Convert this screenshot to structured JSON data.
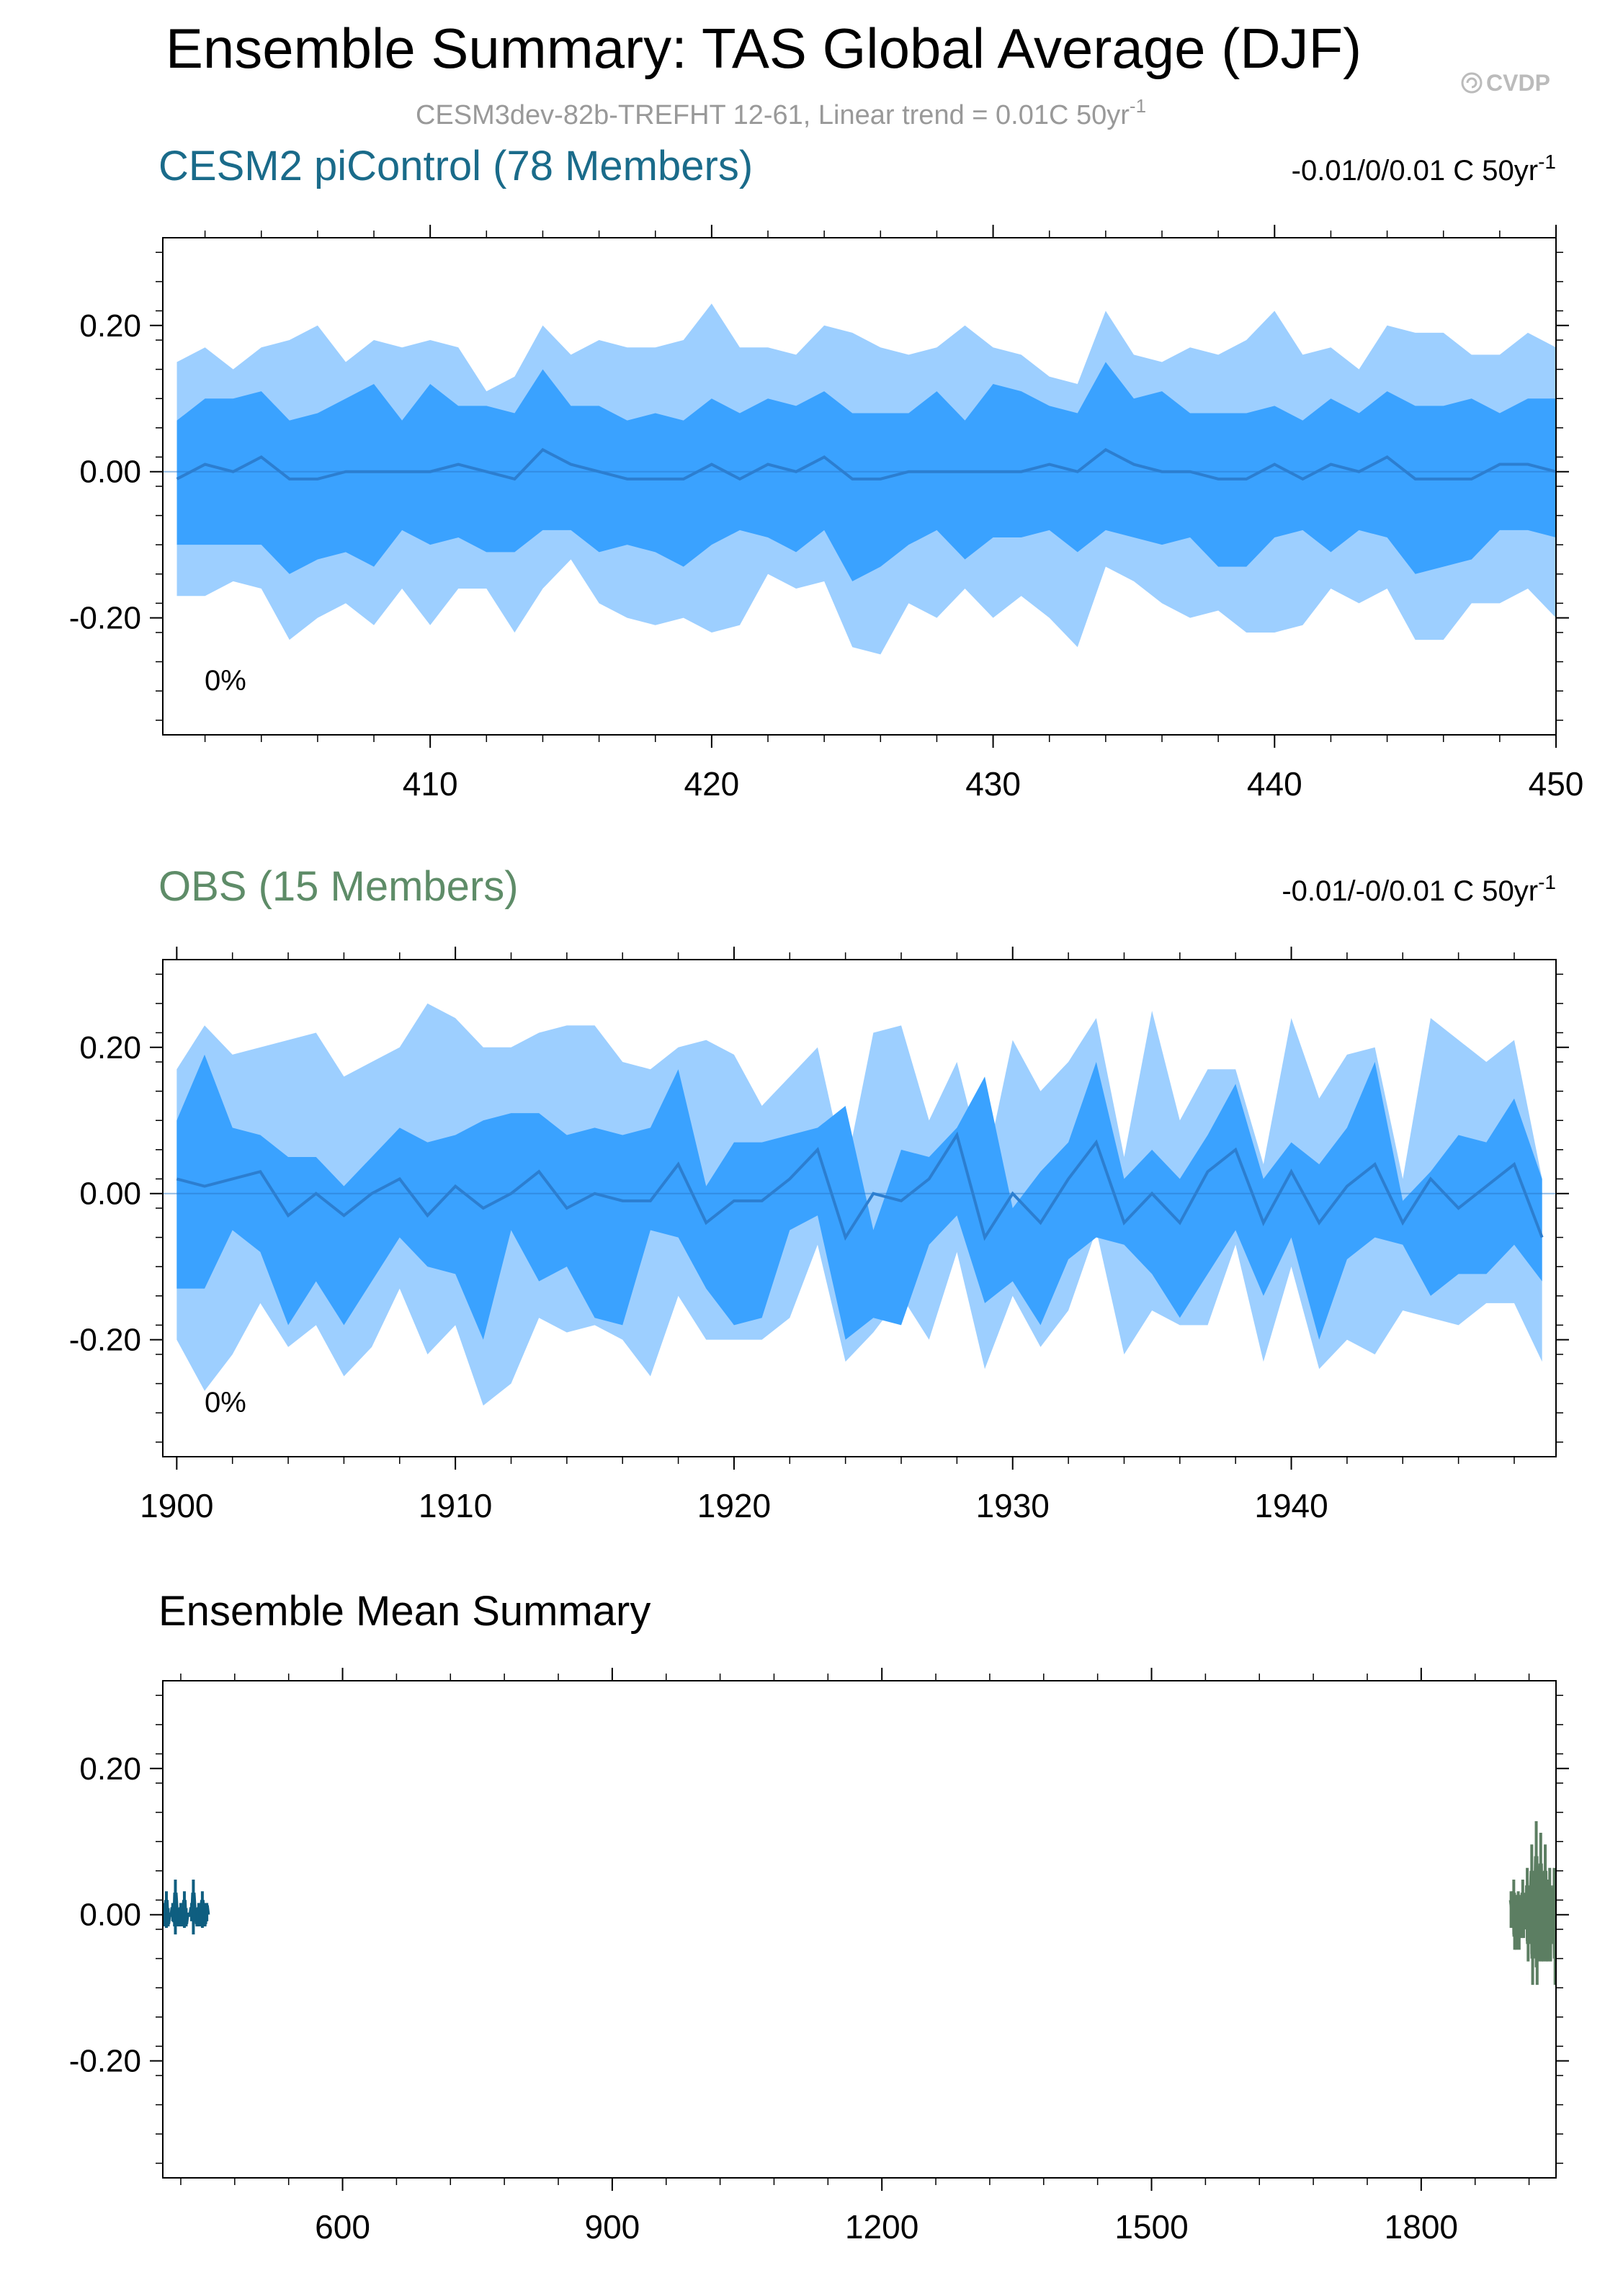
{
  "title": "Ensemble Summary: TAS Global Average (DJF)",
  "subtitle": "CESM3dev-82b-TREFHT 12-61, Linear trend = 0.01C 50yr",
  "subtitle_sup": "-1",
  "watermark": "CVDP",
  "watermark_icon": "cvdp-logo-icon",
  "colors": {
    "outer_band": "#9DCFFF",
    "inner_band": "#3AA2FF",
    "mean_line": "#2C7ED0",
    "cesm_title": "#1A6B8A",
    "obs_title": "#5E8C68",
    "cesm_mean": "#0F5E80",
    "obs_mean": "#5C7E62",
    "subtitle": "#999999"
  },
  "chart_data": [
    {
      "type": "area",
      "panel_title": "CESM2 piControl (78 Members)",
      "trend_text": "-0.01/0/0.01 C 50yr",
      "trend_sup": "-1",
      "percent_label": "0%",
      "x": [
        401,
        402,
        403,
        404,
        405,
        406,
        407,
        408,
        409,
        410,
        411,
        412,
        413,
        414,
        415,
        416,
        417,
        418,
        419,
        420,
        421,
        422,
        423,
        424,
        425,
        426,
        427,
        428,
        429,
        430,
        431,
        432,
        433,
        434,
        435,
        436,
        437,
        438,
        439,
        440,
        441,
        442,
        443,
        444,
        445,
        446,
        447,
        448,
        449,
        450
      ],
      "series": [
        {
          "role": "max",
          "values": [
            0.15,
            0.17,
            0.14,
            0.17,
            0.18,
            0.2,
            0.15,
            0.18,
            0.17,
            0.18,
            0.17,
            0.11,
            0.13,
            0.2,
            0.16,
            0.18,
            0.17,
            0.17,
            0.18,
            0.23,
            0.17,
            0.17,
            0.16,
            0.2,
            0.19,
            0.17,
            0.16,
            0.17,
            0.2,
            0.17,
            0.16,
            0.13,
            0.12,
            0.22,
            0.16,
            0.15,
            0.17,
            0.16,
            0.18,
            0.22,
            0.16,
            0.17,
            0.14,
            0.2,
            0.19,
            0.19,
            0.16,
            0.16,
            0.19,
            0.17
          ]
        },
        {
          "role": "q75",
          "values": [
            0.07,
            0.1,
            0.1,
            0.11,
            0.07,
            0.08,
            0.1,
            0.12,
            0.07,
            0.12,
            0.09,
            0.09,
            0.08,
            0.14,
            0.09,
            0.09,
            0.07,
            0.08,
            0.07,
            0.1,
            0.08,
            0.1,
            0.09,
            0.11,
            0.08,
            0.08,
            0.08,
            0.11,
            0.07,
            0.12,
            0.11,
            0.09,
            0.08,
            0.15,
            0.1,
            0.11,
            0.08,
            0.08,
            0.08,
            0.09,
            0.07,
            0.1,
            0.08,
            0.11,
            0.09,
            0.09,
            0.1,
            0.08,
            0.1,
            0.1
          ]
        },
        {
          "role": "mean",
          "values": [
            -0.01,
            0.01,
            0,
            0.02,
            -0.01,
            -0.01,
            0,
            0,
            0,
            0,
            0.01,
            0,
            -0.01,
            0.03,
            0.01,
            0,
            -0.01,
            -0.01,
            -0.01,
            0.01,
            -0.01,
            0.01,
            0,
            0.02,
            -0.01,
            -0.01,
            0,
            0,
            0,
            0,
            0,
            0.01,
            0,
            0.03,
            0.01,
            0,
            0,
            -0.01,
            -0.01,
            0.01,
            -0.01,
            0.01,
            0,
            0.02,
            -0.01,
            -0.01,
            -0.01,
            0.01,
            0.01,
            0
          ]
        },
        {
          "role": "q25",
          "values": [
            -0.1,
            -0.1,
            -0.1,
            -0.1,
            -0.14,
            -0.12,
            -0.11,
            -0.13,
            -0.08,
            -0.1,
            -0.09,
            -0.11,
            -0.11,
            -0.08,
            -0.08,
            -0.11,
            -0.1,
            -0.11,
            -0.13,
            -0.1,
            -0.08,
            -0.09,
            -0.11,
            -0.08,
            -0.15,
            -0.13,
            -0.1,
            -0.08,
            -0.12,
            -0.09,
            -0.09,
            -0.08,
            -0.11,
            -0.08,
            -0.09,
            -0.1,
            -0.09,
            -0.13,
            -0.13,
            -0.09,
            -0.08,
            -0.11,
            -0.08,
            -0.09,
            -0.14,
            -0.13,
            -0.12,
            -0.08,
            -0.08,
            -0.09
          ]
        },
        {
          "role": "min",
          "values": [
            -0.17,
            -0.17,
            -0.15,
            -0.16,
            -0.23,
            -0.2,
            -0.18,
            -0.21,
            -0.16,
            -0.21,
            -0.16,
            -0.16,
            -0.22,
            -0.16,
            -0.12,
            -0.18,
            -0.2,
            -0.21,
            -0.2,
            -0.22,
            -0.21,
            -0.14,
            -0.16,
            -0.15,
            -0.24,
            -0.25,
            -0.18,
            -0.2,
            -0.16,
            -0.2,
            -0.17,
            -0.2,
            -0.24,
            -0.13,
            -0.15,
            -0.18,
            -0.2,
            -0.19,
            -0.22,
            -0.22,
            -0.21,
            -0.16,
            -0.18,
            -0.16,
            -0.23,
            -0.23,
            -0.18,
            -0.18,
            -0.16,
            -0.2
          ]
        }
      ],
      "xlim": [
        400.5,
        450
      ],
      "ylim": [
        -0.36,
        0.32
      ],
      "xticks": [
        410,
        420,
        430,
        440,
        450
      ],
      "xtick_labels": [
        "410",
        "420",
        "430",
        "440",
        "450"
      ],
      "yticks": [
        0.2,
        0.0,
        -0.2
      ],
      "ytick_labels": [
        "0.20",
        "0.00",
        "-0.20"
      ]
    },
    {
      "type": "area",
      "panel_title": "OBS (15 Members)",
      "trend_text": "-0.01/-0/0.01 C 50yr",
      "trend_sup": "-1",
      "percent_label": "0%",
      "x": [
        1900,
        1901,
        1902,
        1903,
        1904,
        1905,
        1906,
        1907,
        1908,
        1909,
        1910,
        1911,
        1912,
        1913,
        1914,
        1915,
        1916,
        1917,
        1918,
        1919,
        1920,
        1921,
        1922,
        1923,
        1924,
        1925,
        1926,
        1927,
        1928,
        1929,
        1930,
        1931,
        1932,
        1933,
        1934,
        1935,
        1936,
        1937,
        1938,
        1939,
        1940,
        1941,
        1942,
        1943,
        1944,
        1945,
        1946,
        1947,
        1948,
        1949
      ],
      "series": [
        {
          "role": "max",
          "values": [
            0.17,
            0.23,
            0.19,
            0.2,
            0.21,
            0.22,
            0.16,
            0.18,
            0.2,
            0.26,
            0.24,
            0.2,
            0.2,
            0.22,
            0.23,
            0.23,
            0.18,
            0.17,
            0.2,
            0.21,
            0.19,
            0.12,
            0.16,
            0.2,
            0.03,
            0.22,
            0.23,
            0.1,
            0.18,
            0.03,
            0.21,
            0.14,
            0.18,
            0.24,
            0.05,
            0.25,
            0.1,
            0.17,
            0.17,
            0.04,
            0.24,
            0.13,
            0.19,
            0.2,
            0.02,
            0.24,
            0.21,
            0.18,
            0.21,
            0.02
          ]
        },
        {
          "role": "q75",
          "values": [
            0.1,
            0.19,
            0.09,
            0.08,
            0.05,
            0.05,
            0.01,
            0.05,
            0.09,
            0.07,
            0.08,
            0.1,
            0.11,
            0.11,
            0.08,
            0.09,
            0.08,
            0.09,
            0.17,
            0.01,
            0.07,
            0.07,
            0.08,
            0.09,
            0.12,
            -0.05,
            0.06,
            0.05,
            0.09,
            0.16,
            -0.02,
            0.03,
            0.07,
            0.18,
            0.02,
            0.06,
            0.02,
            0.08,
            0.15,
            0.02,
            0.07,
            0.04,
            0.09,
            0.18,
            -0.01,
            0.03,
            0.08,
            0.07,
            0.13,
            0.02
          ]
        },
        {
          "role": "mean",
          "values": [
            0.02,
            0.01,
            0.02,
            0.03,
            -0.03,
            0,
            -0.03,
            0,
            0.02,
            -0.03,
            0.01,
            -0.02,
            0,
            0.03,
            -0.02,
            0,
            -0.01,
            -0.01,
            0.04,
            -0.04,
            -0.01,
            -0.01,
            0.02,
            0.06,
            -0.06,
            0,
            -0.01,
            0.02,
            0.08,
            -0.06,
            0,
            -0.04,
            0.02,
            0.07,
            -0.04,
            0,
            -0.04,
            0.03,
            0.06,
            -0.04,
            0.03,
            -0.04,
            0.01,
            0.04,
            -0.04,
            0.02,
            -0.02,
            0.01,
            0.04,
            -0.06
          ]
        },
        {
          "role": "q25",
          "values": [
            -0.13,
            -0.13,
            -0.05,
            -0.08,
            -0.18,
            -0.12,
            -0.18,
            -0.12,
            -0.06,
            -0.1,
            -0.11,
            -0.2,
            -0.05,
            -0.12,
            -0.1,
            -0.17,
            -0.18,
            -0.05,
            -0.06,
            -0.13,
            -0.18,
            -0.17,
            -0.05,
            -0.03,
            -0.2,
            -0.17,
            -0.18,
            -0.07,
            -0.03,
            -0.15,
            -0.12,
            -0.18,
            -0.09,
            -0.06,
            -0.07,
            -0.11,
            -0.17,
            -0.11,
            -0.05,
            -0.14,
            -0.06,
            -0.2,
            -0.09,
            -0.06,
            -0.07,
            -0.14,
            -0.11,
            -0.11,
            -0.07,
            -0.12
          ]
        },
        {
          "role": "min",
          "values": [
            -0.2,
            -0.27,
            -0.22,
            -0.15,
            -0.21,
            -0.18,
            -0.25,
            -0.21,
            -0.13,
            -0.22,
            -0.18,
            -0.29,
            -0.26,
            -0.17,
            -0.19,
            -0.18,
            -0.2,
            -0.25,
            -0.14,
            -0.2,
            -0.2,
            -0.2,
            -0.17,
            -0.07,
            -0.23,
            -0.19,
            -0.14,
            -0.2,
            -0.08,
            -0.24,
            -0.14,
            -0.21,
            -0.16,
            -0.05,
            -0.22,
            -0.16,
            -0.18,
            -0.18,
            -0.07,
            -0.23,
            -0.1,
            -0.24,
            -0.2,
            -0.22,
            -0.16,
            -0.17,
            -0.18,
            -0.15,
            -0.15,
            -0.23
          ]
        }
      ],
      "xlim": [
        1899.5,
        1949.5
      ],
      "ylim": [
        -0.36,
        0.32
      ],
      "xticks": [
        1900,
        1910,
        1920,
        1930,
        1940
      ],
      "xtick_labels": [
        "1900",
        "1910",
        "1920",
        "1930",
        "1940"
      ],
      "yticks": [
        0.2,
        0.0,
        -0.2
      ],
      "ytick_labels": [
        "0.20",
        "0.00",
        "-0.20"
      ]
    },
    {
      "type": "line",
      "panel_title": "Ensemble Mean Summary",
      "series": [
        {
          "name_hidden": "cesm",
          "x_start": 401,
          "values": [
            -0.01,
            0.01,
            0,
            0.02,
            -0.01,
            -0.01,
            0,
            0,
            0,
            0,
            0.01,
            0,
            -0.01,
            0.03,
            0.01,
            0,
            -0.01,
            -0.01,
            -0.01,
            0.01,
            -0.01,
            0.01,
            0,
            0.02,
            -0.01,
            -0.01,
            0,
            0,
            0,
            0,
            0,
            0.01,
            0,
            0.03,
            0.01,
            0,
            0,
            -0.01,
            -0.01,
            0.01,
            -0.01,
            0.01,
            0,
            0.02,
            -0.01,
            -0.01,
            -0.01,
            0.01,
            0.01,
            0
          ]
        },
        {
          "name_hidden": "obs",
          "x_start": 1900,
          "values": [
            0.02,
            0.01,
            0.02,
            0.03,
            -0.03,
            0,
            -0.03,
            0,
            0.02,
            -0.03,
            0.01,
            -0.02,
            0,
            0.03,
            -0.02,
            0,
            -0.01,
            -0.01,
            0.04,
            -0.04,
            -0.01,
            -0.01,
            0.02,
            0.06,
            -0.06,
            0,
            -0.01,
            0.02,
            0.08,
            -0.06,
            0,
            -0.04,
            0.02,
            0.07,
            -0.04,
            0,
            -0.04,
            0.03,
            0.06,
            -0.04,
            0.03,
            -0.04,
            0.01,
            0.04,
            -0.04,
            0.02,
            -0.02,
            0.01,
            0.04,
            -0.06
          ]
        }
      ],
      "xlim": [
        400,
        1950
      ],
      "ylim": [
        -0.36,
        0.32
      ],
      "xticks": [
        600,
        900,
        1200,
        1500,
        1800
      ],
      "xtick_labels": [
        "600",
        "900",
        "1200",
        "1500",
        "1800"
      ],
      "yticks": [
        0.2,
        0.0,
        -0.2
      ],
      "ytick_labels": [
        "0.20",
        "0.00",
        "-0.20"
      ]
    }
  ]
}
